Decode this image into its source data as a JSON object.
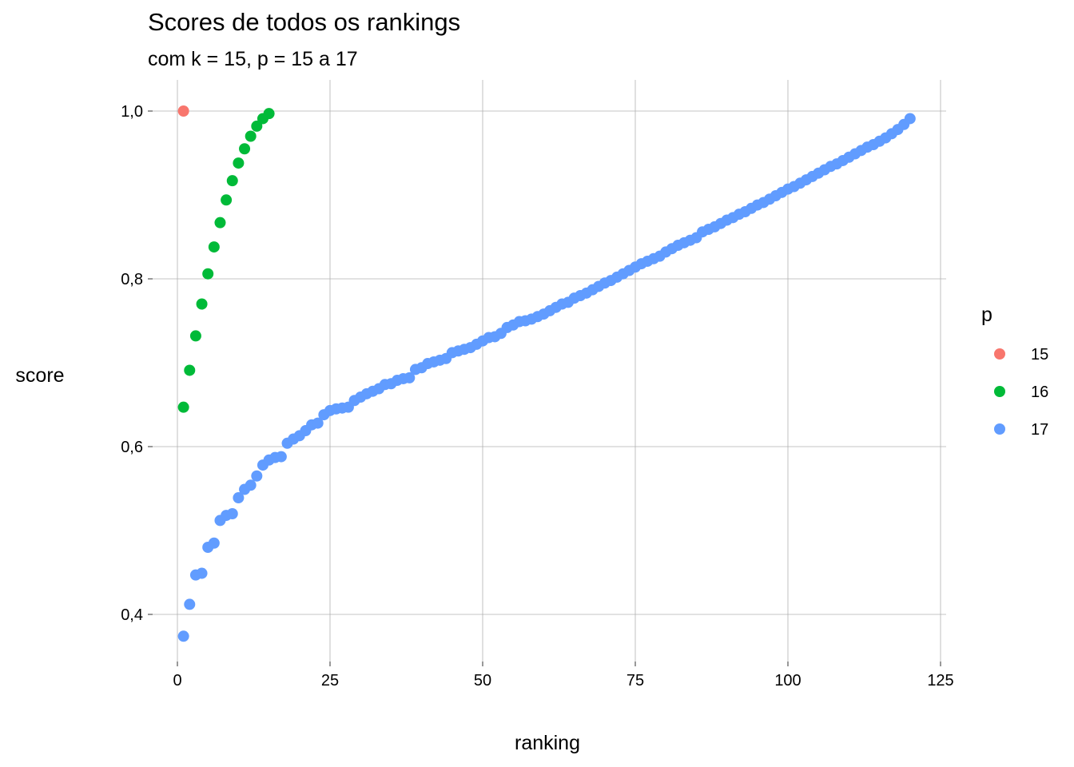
{
  "chart_data": {
    "type": "scatter",
    "title": "Scores de todos os rankings",
    "subtitle": "com k = 15,  p = 15 a 17",
    "xlabel": "ranking",
    "ylabel": "score",
    "xlim": [
      0,
      125
    ],
    "ylim": [
      0.35,
      1.0
    ],
    "x_ticks": [
      0,
      25,
      50,
      75,
      100,
      125
    ],
    "x_tick_labels": [
      "0",
      "25",
      "50",
      "75",
      "100",
      "125"
    ],
    "y_ticks": [
      0.4,
      0.6,
      0.8,
      1.0
    ],
    "y_tick_labels": [
      "0,4",
      "0,6",
      "0,8",
      "1,0"
    ],
    "grid": true,
    "legend": {
      "title": "p",
      "placement": "right"
    },
    "series": [
      {
        "name": "15",
        "color": "#F8766D",
        "x": [
          1
        ],
        "y": [
          1.0
        ]
      },
      {
        "name": "16",
        "color": "#00BA38",
        "x": [
          1,
          2,
          3,
          4,
          5,
          6,
          7,
          8,
          9,
          10,
          11,
          12,
          13,
          14,
          15
        ],
        "y": [
          0.647,
          0.691,
          0.732,
          0.77,
          0.806,
          0.838,
          0.867,
          0.894,
          0.917,
          0.938,
          0.955,
          0.97,
          0.982,
          0.991,
          0.997
        ]
      },
      {
        "name": "17",
        "color": "#619CFF",
        "x": [
          1,
          2,
          3,
          4,
          5,
          6,
          7,
          8,
          9,
          10,
          11,
          12,
          13,
          14,
          15,
          16,
          17,
          18,
          19,
          20,
          21,
          22,
          23,
          24,
          25,
          26,
          27,
          28,
          29,
          30,
          31,
          32,
          33,
          34,
          35,
          36,
          37,
          38,
          39,
          40,
          41,
          42,
          43,
          44,
          45,
          46,
          47,
          48,
          49,
          50,
          51,
          52,
          53,
          54,
          55,
          56,
          57,
          58,
          59,
          60,
          61,
          62,
          63,
          64,
          65,
          66,
          67,
          68,
          69,
          70,
          71,
          72,
          73,
          74,
          75,
          76,
          77,
          78,
          79,
          80,
          81,
          82,
          83,
          84,
          85,
          86,
          87,
          88,
          89,
          90,
          91,
          92,
          93,
          94,
          95,
          96,
          97,
          98,
          99,
          100,
          101,
          102,
          103,
          104,
          105,
          106,
          107,
          108,
          109,
          110,
          111,
          112,
          113,
          114,
          115,
          116,
          117,
          118,
          119,
          120
        ],
        "y": [
          0.374,
          0.412,
          0.447,
          0.449,
          0.48,
          0.485,
          0.512,
          0.518,
          0.52,
          0.539,
          0.549,
          0.554,
          0.565,
          0.578,
          0.584,
          0.587,
          0.588,
          0.604,
          0.609,
          0.613,
          0.619,
          0.626,
          0.628,
          0.638,
          0.643,
          0.645,
          0.646,
          0.647,
          0.655,
          0.659,
          0.663,
          0.666,
          0.669,
          0.674,
          0.675,
          0.679,
          0.681,
          0.682,
          0.692,
          0.694,
          0.699,
          0.701,
          0.703,
          0.705,
          0.712,
          0.714,
          0.716,
          0.718,
          0.722,
          0.726,
          0.73,
          0.731,
          0.735,
          0.742,
          0.745,
          0.749,
          0.75,
          0.752,
          0.755,
          0.758,
          0.762,
          0.766,
          0.77,
          0.772,
          0.777,
          0.78,
          0.783,
          0.787,
          0.791,
          0.795,
          0.798,
          0.802,
          0.806,
          0.81,
          0.814,
          0.818,
          0.821,
          0.824,
          0.827,
          0.832,
          0.836,
          0.84,
          0.843,
          0.846,
          0.849,
          0.856,
          0.859,
          0.862,
          0.866,
          0.87,
          0.873,
          0.877,
          0.88,
          0.884,
          0.888,
          0.891,
          0.895,
          0.899,
          0.903,
          0.907,
          0.91,
          0.914,
          0.918,
          0.922,
          0.926,
          0.93,
          0.934,
          0.937,
          0.941,
          0.945,
          0.949,
          0.953,
          0.957,
          0.96,
          0.964,
          0.968,
          0.973,
          0.978,
          0.984,
          0.991
        ]
      }
    ]
  }
}
